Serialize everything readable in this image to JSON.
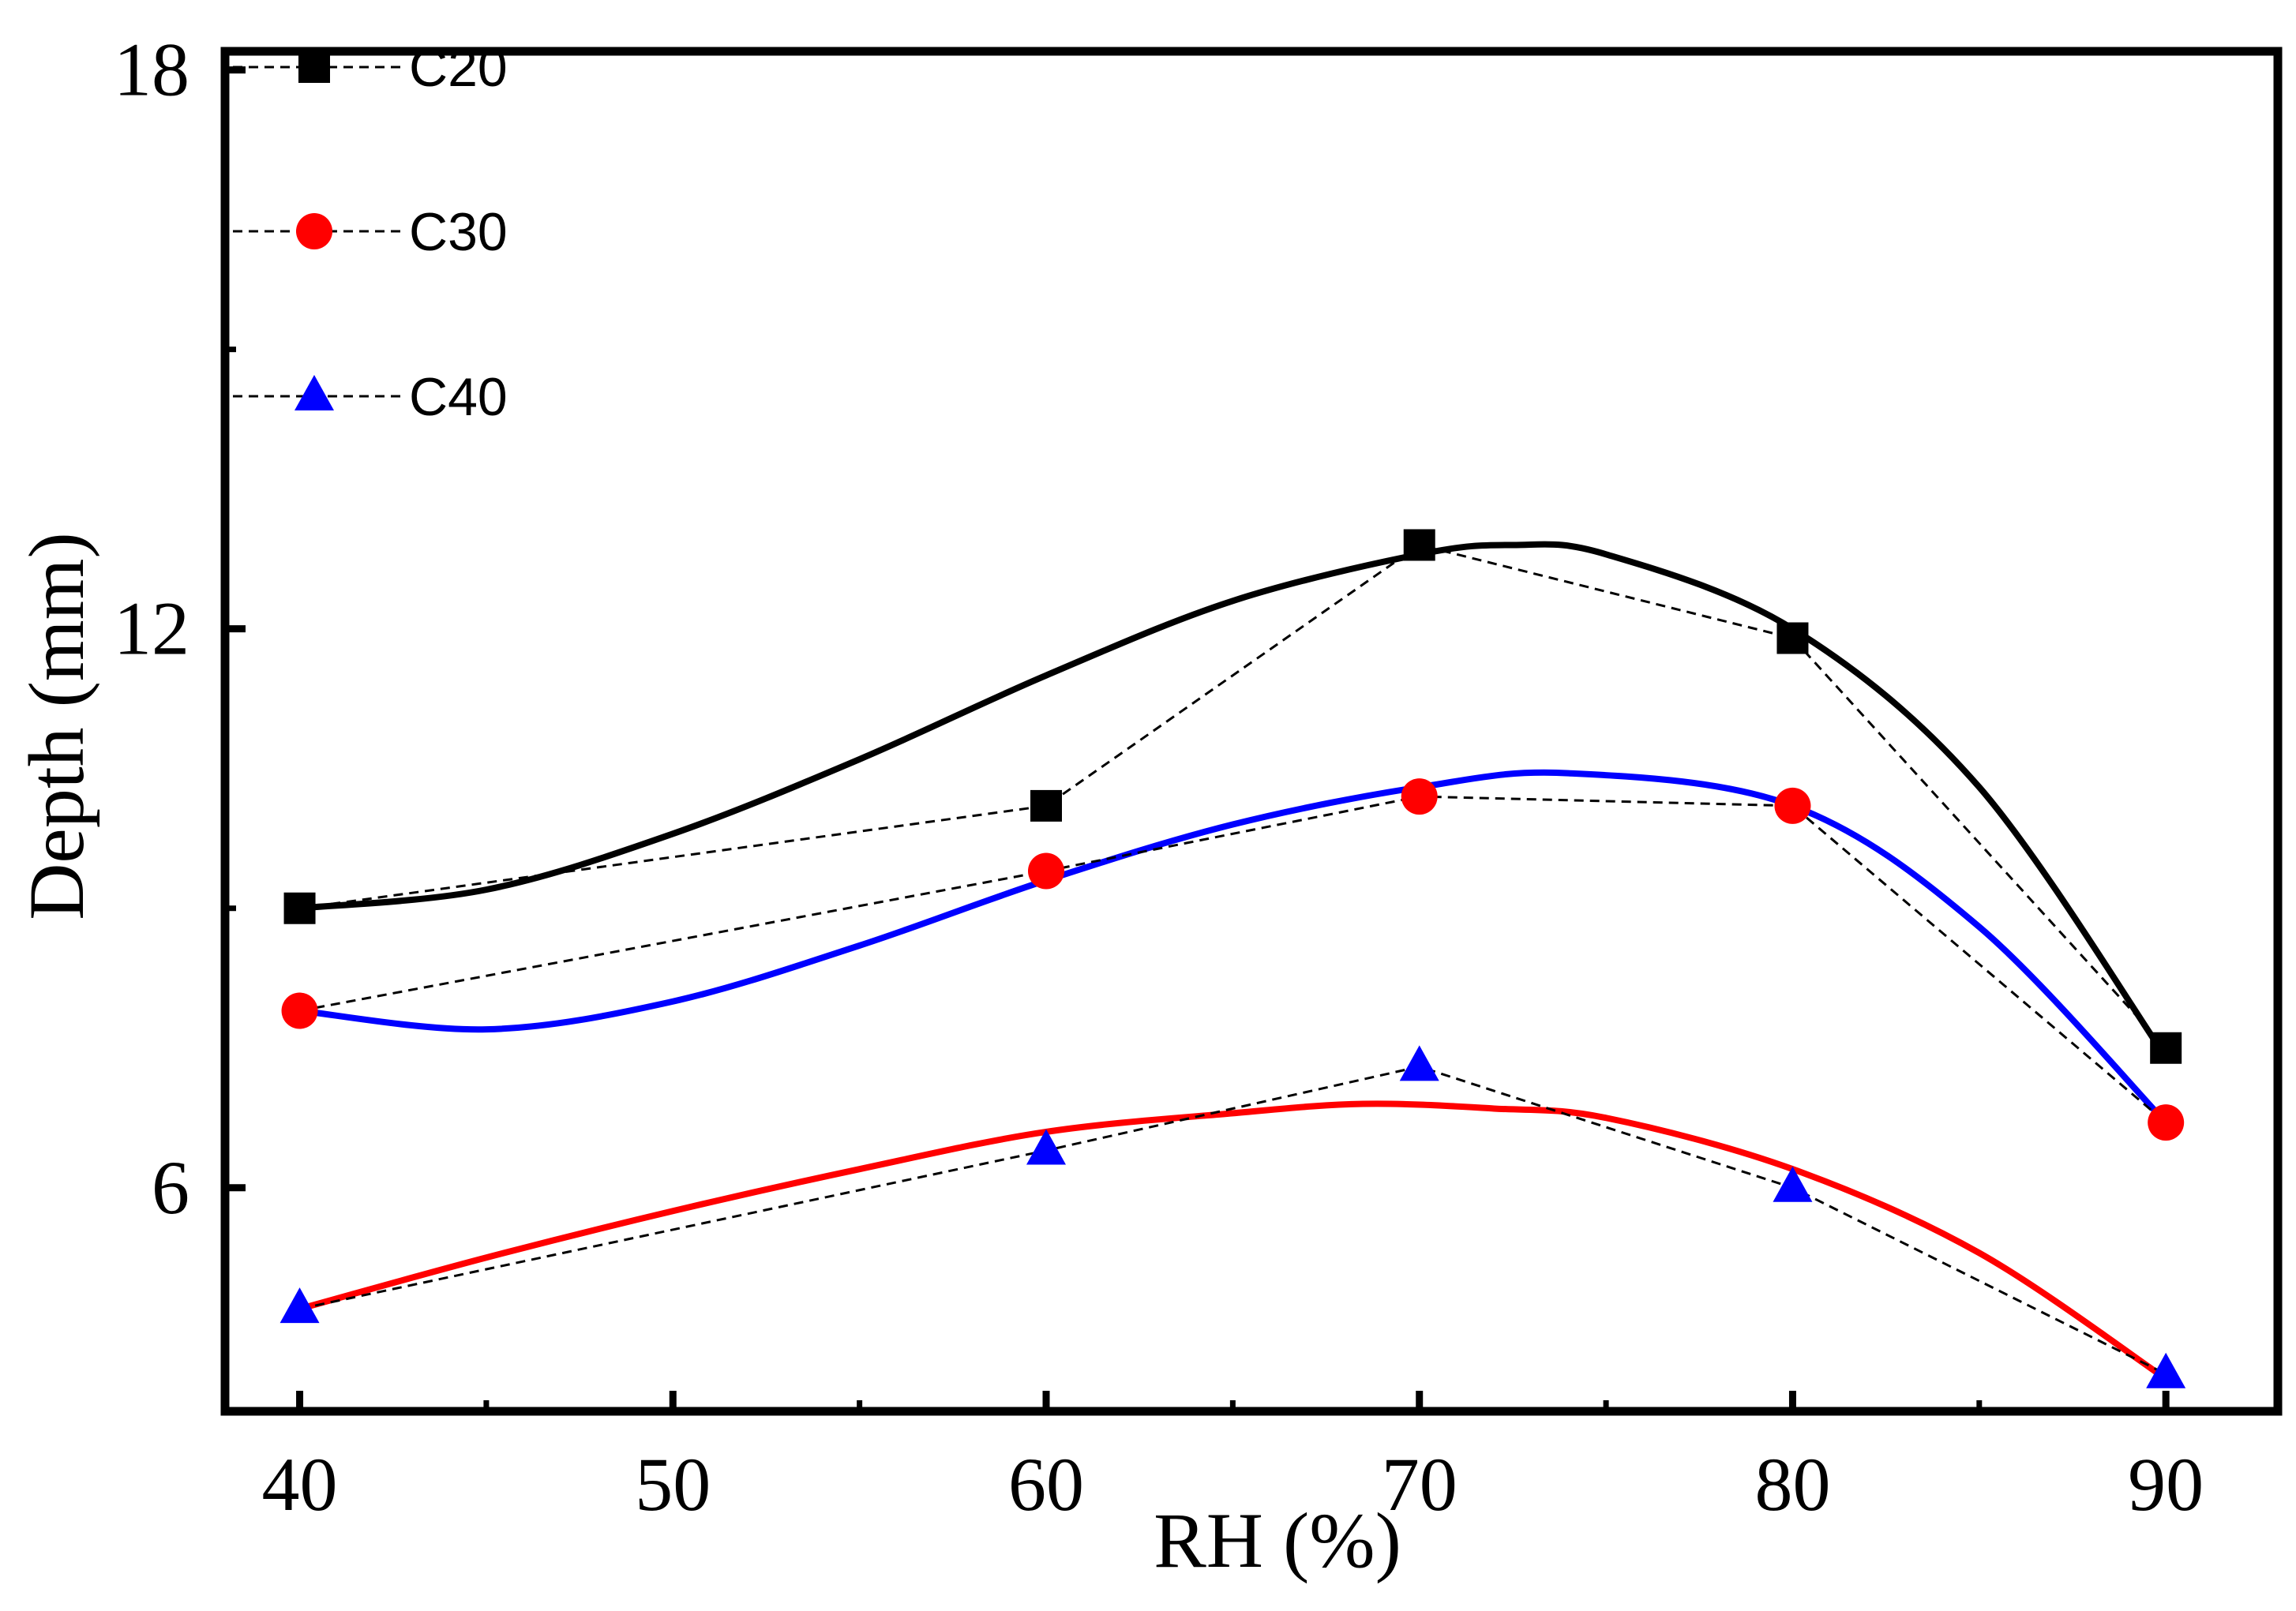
{
  "chart_data": {
    "type": "line",
    "title": "",
    "xlabel": "RH (%)",
    "ylabel": "Depth (mm)",
    "xlim": [
      38,
      93
    ],
    "ylim": [
      3.6,
      18.2
    ],
    "x_ticks": [
      40,
      50,
      60,
      70,
      80,
      90
    ],
    "y_ticks": [
      6,
      12,
      18
    ],
    "x_tick_labels": [
      "40",
      "50",
      "60",
      "70",
      "80",
      "90"
    ],
    "y_tick_labels": [
      "6",
      "12",
      "18"
    ],
    "legend_position": "top-left",
    "series": [
      {
        "name": "C20",
        "marker": "square",
        "marker_color": "#000000",
        "fit_color": "#000000",
        "x": [
          40,
          60,
          70,
          80,
          90
        ],
        "y": [
          9.0,
          10.1,
          12.9,
          11.9,
          7.5
        ],
        "fit_curve": [
          [
            40,
            9.0
          ],
          [
            45,
            9.2
          ],
          [
            50,
            9.8
          ],
          [
            55,
            10.6
          ],
          [
            60,
            11.5
          ],
          [
            65,
            12.3
          ],
          [
            70,
            12.8
          ],
          [
            72.5,
            12.9
          ],
          [
            75,
            12.8
          ],
          [
            80,
            12.0
          ],
          [
            85,
            10.3
          ],
          [
            90,
            7.4
          ]
        ]
      },
      {
        "name": "C30",
        "marker": "circle",
        "marker_color": "#ff0000",
        "fit_color": "#0000ff",
        "x": [
          40,
          60,
          70,
          80,
          90
        ],
        "y": [
          7.9,
          9.4,
          10.2,
          10.1,
          6.7
        ],
        "fit_curve": [
          [
            40,
            7.9
          ],
          [
            45,
            7.7
          ],
          [
            50,
            8.0
          ],
          [
            55,
            8.6
          ],
          [
            60,
            9.3
          ],
          [
            65,
            9.9
          ],
          [
            70,
            10.3
          ],
          [
            74,
            10.45
          ],
          [
            80,
            10.1
          ],
          [
            85,
            8.8
          ],
          [
            90,
            6.7
          ]
        ]
      },
      {
        "name": "C40",
        "marker": "triangle",
        "marker_color": "#0000ff",
        "fit_color": "#ff0000",
        "x": [
          40,
          60,
          70,
          80,
          90
        ],
        "y": [
          4.7,
          6.4,
          7.3,
          6.0,
          4.0
        ],
        "fit_curve": [
          [
            40,
            4.7
          ],
          [
            45,
            5.25
          ],
          [
            50,
            5.75
          ],
          [
            55,
            6.2
          ],
          [
            60,
            6.6
          ],
          [
            65,
            6.8
          ],
          [
            68.5,
            6.9
          ],
          [
            72,
            6.85
          ],
          [
            75,
            6.75
          ],
          [
            80,
            6.2
          ],
          [
            85,
            5.3
          ],
          [
            90,
            3.95
          ]
        ]
      }
    ]
  }
}
